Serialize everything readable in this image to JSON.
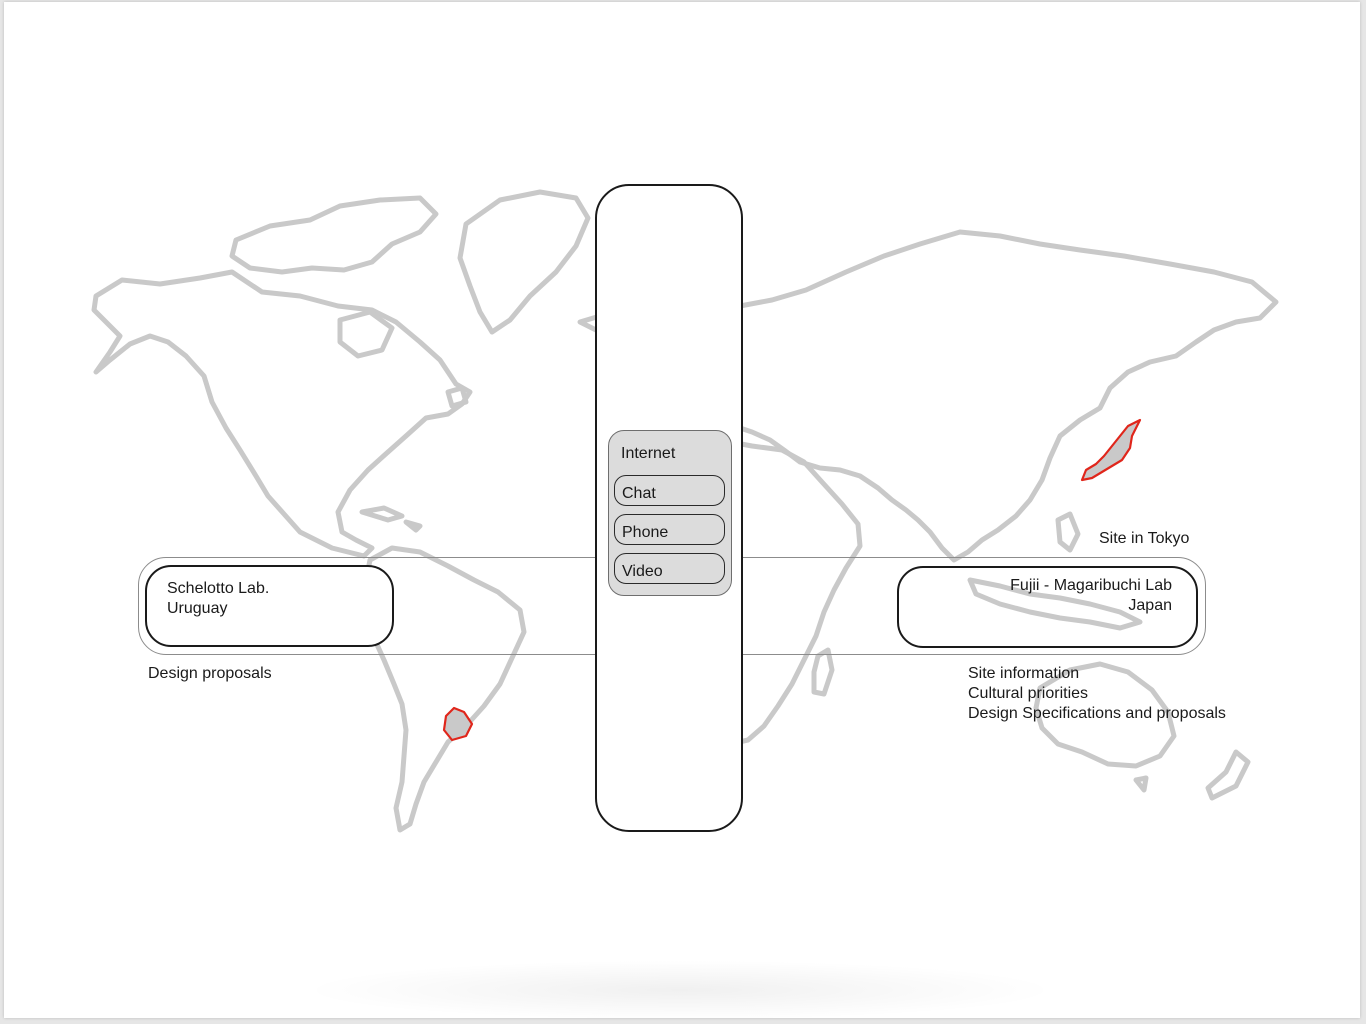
{
  "communication": {
    "title": "Internet",
    "items": [
      "Chat",
      "Phone",
      "Video"
    ]
  },
  "left_lab": {
    "name": "Schelotto Lab.",
    "country": "Uruguay",
    "output": "Design proposals"
  },
  "right_lab": {
    "name": "Fujii - Magaribuchi Lab",
    "country": "Japan",
    "site_label": "Site in Tokyo",
    "outputs": [
      "Site information",
      "Cultural priorities",
      "Design Specifications and proposals"
    ]
  },
  "colors": {
    "landmass_outline": "#c9c9c9",
    "highlight_outline": "#e0261b",
    "box_stroke": "#1a1a1a",
    "comm_fill": "#dcdcdc"
  },
  "highlighted_countries": [
    "Uruguay",
    "Japan"
  ]
}
